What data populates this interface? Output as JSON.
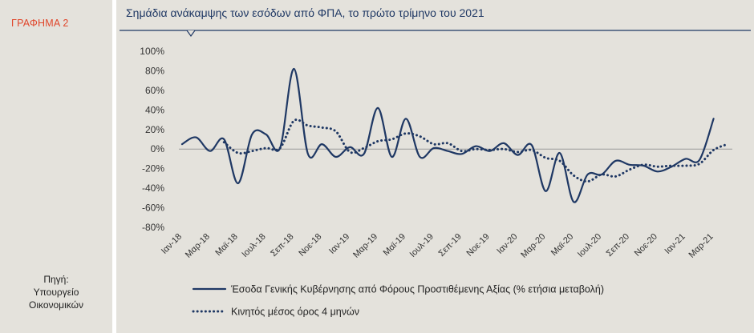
{
  "figure_label": "ΓΡΑΦΗΜΑ 2",
  "source": {
    "line1": "Πηγή:",
    "line2": "Υπουργείο",
    "line3": "Οικονομικών"
  },
  "colors": {
    "accent": "#e0472c",
    "series_main": "#1f3864",
    "series_avg": "#1f3864",
    "background": "#e4e2dc"
  },
  "chart_data": {
    "type": "line",
    "title": "Σημάδια ανάκαμψης των εσόδων από ΦΠΑ, το πρώτο τρίμηνο του 2021",
    "xlabel": "",
    "ylabel": "",
    "ylim": [
      -80,
      100
    ],
    "yticks": [
      100,
      80,
      60,
      40,
      20,
      0,
      -20,
      -40,
      -60,
      -80
    ],
    "ytick_labels": [
      "100%",
      "80%",
      "60%",
      "40%",
      "20%",
      "0%",
      "-20%",
      "-40%",
      "-60%",
      "-80%"
    ],
    "grid": false,
    "legend_position": "bottom",
    "x_tick_labels": [
      "Ιαν-18",
      "Μαρ-18",
      "Μαϊ-18",
      "Ιουλ-18",
      "Σεπ-18",
      "Νοε-18",
      "Ιαν-19",
      "Μαρ-19",
      "Μαϊ-19",
      "Ιουλ-19",
      "Σεπ-19",
      "Νοε-19",
      "Ιαν-20",
      "Μαρ-20",
      "Μαϊ-20",
      "Ιουλ-20",
      "Σεπ-20",
      "Νοε-20",
      "Ιαν-21",
      "Μαρ-21"
    ],
    "months": [
      "Ιαν-18",
      "Φεβ-18",
      "Μαρ-18",
      "Απρ-18",
      "Μαϊ-18",
      "Ιουν-18",
      "Ιουλ-18",
      "Αυγ-18",
      "Σεπ-18",
      "Οκτ-18",
      "Νοε-18",
      "Δεκ-18",
      "Ιαν-19",
      "Φεβ-19",
      "Μαρ-19",
      "Απρ-19",
      "Μαϊ-19",
      "Ιουν-19",
      "Ιουλ-19",
      "Αυγ-19",
      "Σεπ-19",
      "Οκτ-19",
      "Νοε-19",
      "Δεκ-19",
      "Ιαν-20",
      "Φεβ-20",
      "Μαρ-20",
      "Απρ-20",
      "Μαϊ-20",
      "Ιουν-20",
      "Ιουλ-20",
      "Αυγ-20",
      "Σεπ-20",
      "Οκτ-20",
      "Νοε-20",
      "Δεκ-20",
      "Ιαν-21",
      "Φεβ-21",
      "Μαρ-21",
      "Απρ-21"
    ],
    "series": [
      {
        "name": "Έσοδα Γενικής Κυβέρνησης από Φόρους Προστιθέμενης Αξίας (% ετήσια μεταβολή)",
        "style": "solid",
        "values": [
          5,
          12,
          -2,
          10,
          -35,
          15,
          15,
          1,
          82,
          -5,
          5,
          -8,
          2,
          -5,
          42,
          -8,
          31,
          -8,
          1,
          -2,
          -5,
          3,
          -2,
          6,
          -6,
          4,
          -43,
          -4,
          -54,
          -26,
          -26,
          -12,
          -16,
          -17,
          -23,
          -18,
          -10,
          -11,
          31,
          null
        ]
      },
      {
        "name": "Κινητός μέσος όρος 4 μηνών",
        "style": "dotted",
        "values": [
          null,
          null,
          null,
          7,
          -4,
          -2,
          1,
          1,
          29,
          24,
          22,
          18,
          -3,
          1,
          8,
          10,
          16,
          13,
          5,
          6,
          -2,
          0,
          -1,
          0,
          -3,
          -1,
          -9,
          -12,
          -27,
          -33,
          -26,
          -28,
          -21,
          -16,
          -18,
          -17,
          -17,
          -15,
          -1,
          5
        ]
      }
    ]
  }
}
